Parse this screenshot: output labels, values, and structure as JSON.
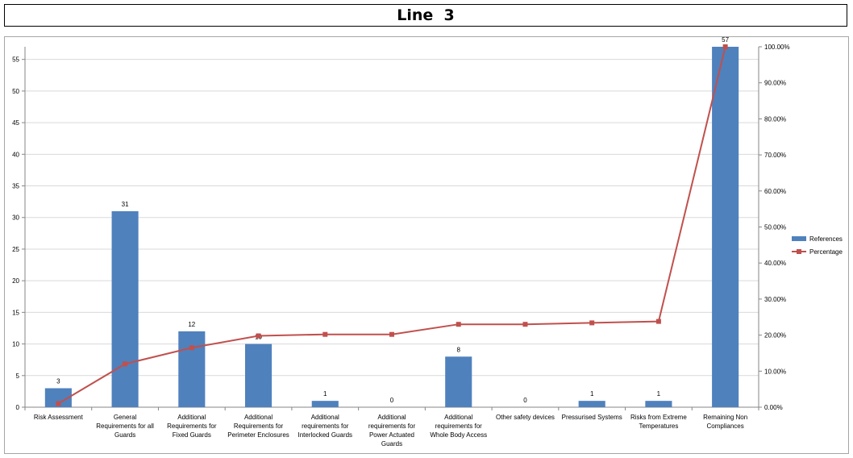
{
  "chart_data": {
    "type": "bar",
    "title": "Line  3",
    "categories": [
      "Risk Assessment",
      "General Requirements for all Guards",
      "Additional Requirements for Fixed Guards",
      "Additional Requirements for Perimeter Enclosures",
      "Additional requirements for Interlocked Guards",
      "Additional requirements for Power Actuated Guards",
      "Additional requirements for Whole Body Access",
      "Other safety devices",
      "Pressurised Systems",
      "Risks from Extreme Temperatures",
      "Remaining Non Compliances"
    ],
    "category_lines": [
      [
        "Risk Assessment"
      ],
      [
        "General",
        "Requirements for all",
        "Guards"
      ],
      [
        "Additional",
        "Requirements for",
        "Fixed Guards"
      ],
      [
        "Additional",
        "Requirements for",
        "Perimeter Enclosures"
      ],
      [
        "Additional",
        "requirements for",
        "Interlocked Guards"
      ],
      [
        "Additional",
        "requirements for",
        "Power Actuated",
        "Guards"
      ],
      [
        "Additional",
        "requirements for",
        "Whole Body Access"
      ],
      [
        "Other safety devices"
      ],
      [
        "Pressurised Systems"
      ],
      [
        "Risks from Extreme",
        "Temperatures"
      ],
      [
        "Remaining Non",
        "Compliances"
      ]
    ],
    "series": [
      {
        "name": "References",
        "type": "bar",
        "axis": "left",
        "color": "#4f81bd",
        "values": [
          3,
          31,
          12,
          10,
          1,
          0,
          8,
          0,
          1,
          1,
          57
        ]
      },
      {
        "name": "Percentage",
        "type": "line",
        "axis": "right",
        "color": "#c0504d",
        "values": [
          1.0,
          12.0,
          16.5,
          19.8,
          20.2,
          20.2,
          23.0,
          23.0,
          23.4,
          23.8,
          100.0
        ]
      }
    ],
    "y_left": {
      "min": 0,
      "max": 57,
      "ticks": [
        "0",
        "5",
        "10",
        "15",
        "20",
        "25",
        "30",
        "35",
        "40",
        "45",
        "50",
        "55"
      ]
    },
    "y_right": {
      "min": 0,
      "max": 100,
      "ticks": [
        "0.00%",
        "10.00%",
        "20.00%",
        "30.00%",
        "40.00%",
        "50.00%",
        "60.00%",
        "70.00%",
        "80.00%",
        "90.00%",
        "100.00%"
      ]
    },
    "grid": true,
    "legend_position": "right"
  }
}
